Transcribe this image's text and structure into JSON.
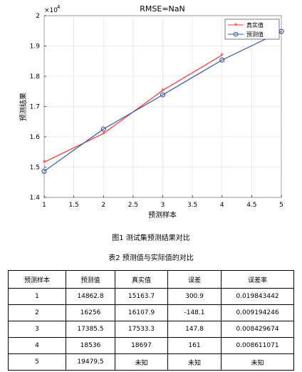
{
  "chart_data": {
    "type": "line",
    "title": "RMSE=NaN",
    "xlabel": "预测样本",
    "ylabel": "预测结果",
    "y_exponent_label": "×10",
    "y_exponent_power": "4",
    "xlim": [
      1,
      5
    ],
    "ylim": [
      1.4,
      2.0
    ],
    "x_ticks": [
      "1",
      "1.5",
      "2",
      "2.5",
      "3",
      "3.5",
      "4",
      "4.5",
      "5"
    ],
    "y_ticks": [
      "1.4",
      "1.5",
      "1.6",
      "1.7",
      "1.8",
      "1.9",
      "2"
    ],
    "grid": true,
    "legend_position": "top-right",
    "series": [
      {
        "name": "真实值",
        "color": "#ff3333",
        "marker": "star",
        "x": [
          1,
          2,
          3,
          4
        ],
        "y": [
          1.5164,
          1.6108,
          1.7533,
          1.8697
        ]
      },
      {
        "name": "预测值",
        "color": "#3355aa",
        "marker": "circle",
        "x": [
          1,
          2,
          3,
          4,
          5
        ],
        "y": [
          1.4863,
          1.6256,
          1.7386,
          1.8536,
          1.948
        ]
      }
    ]
  },
  "figure_caption": "图1  测试集预测结果对比",
  "table_caption": "表2  预测值与实际值的对比",
  "table": {
    "headers": [
      "预测样本",
      "预测值",
      "真实值",
      "误差",
      "误差率"
    ],
    "rows": [
      [
        "1",
        "14862.8",
        "15163.7",
        "300.9",
        "0.019843442"
      ],
      [
        "2",
        "16256",
        "16107.9",
        "-148.1",
        "0.009194246"
      ],
      [
        "3",
        "17385.5",
        "17533.3",
        "147.8",
        "0.008429674"
      ],
      [
        "4",
        "18536",
        "18697",
        "161",
        "0.008611071"
      ],
      [
        "5",
        "19479.5",
        "未知",
        "未知",
        "未知"
      ]
    ]
  }
}
